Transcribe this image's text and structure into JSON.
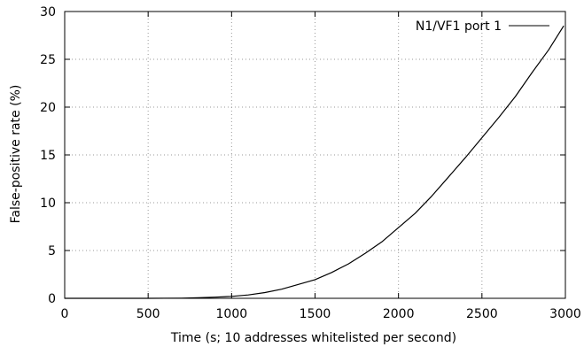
{
  "chart_data": {
    "type": "line",
    "title": "",
    "xlabel": "Time (s; 10 addresses whitelisted per second)",
    "ylabel": "False-positive rate (%)",
    "xlim": [
      0,
      3000
    ],
    "ylim": [
      0,
      30
    ],
    "x_ticks": [
      "0",
      "500",
      "1000",
      "1500",
      "2000",
      "2500",
      "3000"
    ],
    "y_ticks": [
      "0",
      "5",
      "10",
      "15",
      "20",
      "25",
      "30"
    ],
    "grid": true,
    "legend_position": "top-right",
    "series": [
      {
        "name": "N1/VF1 port 1",
        "color": "#000000",
        "x": [
          0,
          500,
          700,
          800,
          900,
          1000,
          1100,
          1200,
          1300,
          1400,
          1500,
          1600,
          1700,
          1800,
          1900,
          2000,
          2100,
          2200,
          2300,
          2400,
          2500,
          2600,
          2700,
          2800,
          2900,
          2990
        ],
        "y": [
          0,
          0,
          0.02,
          0.06,
          0.12,
          0.2,
          0.35,
          0.6,
          0.95,
          1.45,
          1.95,
          2.7,
          3.6,
          4.7,
          5.9,
          7.4,
          8.9,
          10.7,
          12.7,
          14.7,
          16.8,
          18.9,
          21.1,
          23.6,
          26.0,
          28.5
        ]
      }
    ]
  }
}
